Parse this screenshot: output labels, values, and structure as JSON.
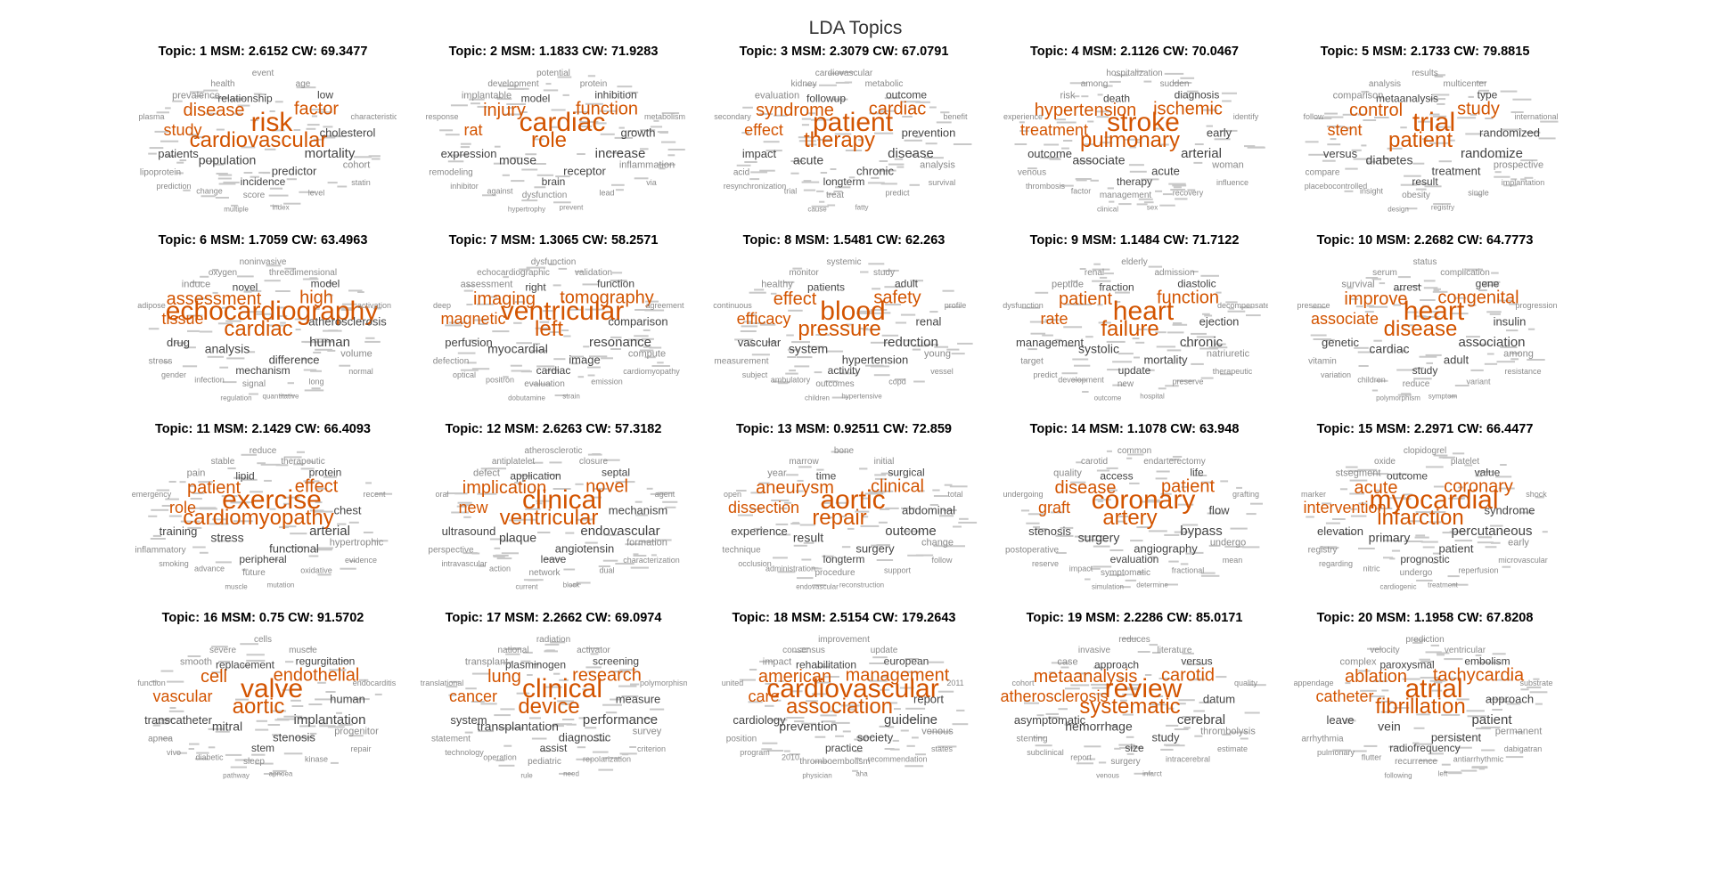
{
  "title": "LDA Topics",
  "colors": {
    "highlight": "#d35400",
    "regular": "#444444",
    "minor": "#8a8a8a"
  },
  "chart_data": [
    {
      "type": "wordcloud",
      "title": "Topic: 1 MSM: 2.6152 CW: 69.3477",
      "highlight": [
        "risk",
        "cardiovascular",
        "disease",
        "factor",
        "study"
      ],
      "words": [
        "risk",
        "cardiovascular",
        "disease",
        "factor",
        "study",
        "mortality",
        "population",
        "predictor",
        "patients",
        "cholesterol",
        "incidence",
        "relationship",
        "low",
        "prevalence",
        "cohort",
        "score",
        "lipoprotein",
        "age",
        "health",
        "event",
        "statin",
        "prediction",
        "level",
        "change",
        "characteristic",
        "plasma",
        "index",
        "multiple"
      ]
    },
    {
      "type": "wordcloud",
      "title": "Topic: 2 MSM: 1.1833 CW: 71.9283",
      "highlight": [
        "cardiac",
        "role",
        "injury",
        "function",
        "rat"
      ],
      "words": [
        "cardiac",
        "role",
        "injury",
        "function",
        "rat",
        "increase",
        "mouse",
        "receptor",
        "expression",
        "growth",
        "brain",
        "model",
        "inhibition",
        "implantable",
        "inflammation",
        "dysfunction",
        "remodeling",
        "protein",
        "development",
        "potential",
        "via",
        "inhibitor",
        "lead",
        "against",
        "metabolism",
        "response",
        "prevent",
        "hypertrophy"
      ]
    },
    {
      "type": "wordcloud",
      "title": "Topic: 3 MSM: 2.3079 CW: 67.0791",
      "highlight": [
        "patient",
        "therapy",
        "syndrome",
        "cardiac",
        "effect"
      ],
      "words": [
        "patient",
        "therapy",
        "syndrome",
        "cardiac",
        "effect",
        "disease",
        "acute",
        "chronic",
        "impact",
        "prevention",
        "longterm",
        "followup",
        "outcome",
        "evaluation",
        "analysis",
        "treat",
        "acid",
        "metabolic",
        "kidney",
        "cardiovascular",
        "survival",
        "resynchronization",
        "predict",
        "trial",
        "benefit",
        "secondary",
        "fatty",
        "cause"
      ]
    },
    {
      "type": "wordcloud",
      "title": "Topic: 4 MSM: 2.1126 CW: 70.0467",
      "highlight": [
        "stroke",
        "pulmonary",
        "hypertension",
        "ischemic",
        "treatment"
      ],
      "words": [
        "stroke",
        "pulmonary",
        "hypertension",
        "ischemic",
        "treatment",
        "arterial",
        "associate",
        "acute",
        "outcome",
        "early",
        "therapy",
        "death",
        "diagnosis",
        "risk",
        "woman",
        "management",
        "venous",
        "sudden",
        "among",
        "hospitalization",
        "influence",
        "thrombosis",
        "recovery",
        "factor",
        "identify",
        "experience",
        "sex",
        "clinical"
      ]
    },
    {
      "type": "wordcloud",
      "title": "Topic: 5 MSM: 2.1733 CW: 79.8815",
      "highlight": [
        "trial",
        "patient",
        "control",
        "study",
        "stent"
      ],
      "words": [
        "trial",
        "patient",
        "control",
        "study",
        "stent",
        "randomize",
        "diabetes",
        "treatment",
        "versus",
        "randomized",
        "result",
        "metaanalysis",
        "type",
        "comparison",
        "prospective",
        "obesity",
        "compare",
        "multicenter",
        "analysis",
        "results",
        "implantation",
        "placebocontrolled",
        "single",
        "insight",
        "international",
        "follow",
        "registry",
        "design"
      ]
    },
    {
      "type": "wordcloud",
      "title": "Topic: 6 MSM: 1.7059 CW: 63.4963",
      "highlight": [
        "echocardiography",
        "cardiac",
        "assessment",
        "high",
        "tissue"
      ],
      "words": [
        "echocardiography",
        "cardiac",
        "assessment",
        "high",
        "tissue",
        "human",
        "analysis",
        "difference",
        "drug",
        "atherosclerosis",
        "mechanism",
        "novel",
        "model",
        "induce",
        "volume",
        "signal",
        "stress",
        "threedimensional",
        "oxygen",
        "noninvasive",
        "normal",
        "gender",
        "long",
        "infection",
        "activation",
        "adipose",
        "quantitative",
        "regulation"
      ]
    },
    {
      "type": "wordcloud",
      "title": "Topic: 7 MSM: 1.3065 CW: 58.2571",
      "highlight": [
        "ventricular",
        "left",
        "imaging",
        "tomography",
        "magnetic"
      ],
      "words": [
        "ventricular",
        "left",
        "imaging",
        "tomography",
        "magnetic",
        "resonance",
        "myocardial",
        "image",
        "perfusion",
        "comparison",
        "cardiac",
        "right",
        "function",
        "assessment",
        "compute",
        "evaluation",
        "defection",
        "validation",
        "echocardiographic",
        "dysfunction",
        "cardiomyopathy",
        "optical",
        "emission",
        "positron",
        "agreement",
        "deep",
        "strain",
        "dobutamine"
      ]
    },
    {
      "type": "wordcloud",
      "title": "Topic: 8 MSM: 1.5481 CW: 62.263",
      "highlight": [
        "blood",
        "pressure",
        "effect",
        "safety",
        "efficacy"
      ],
      "words": [
        "blood",
        "pressure",
        "effect",
        "safety",
        "efficacy",
        "reduction",
        "system",
        "hypertension",
        "vascular",
        "renal",
        "activity",
        "patients",
        "adult",
        "healthy",
        "young",
        "outcomes",
        "measurement",
        "study",
        "monitor",
        "systemic",
        "vessel",
        "subject",
        "copd",
        "ambulatory",
        "profile",
        "continuous",
        "hypertensive",
        "children"
      ]
    },
    {
      "type": "wordcloud",
      "title": "Topic: 9 MSM: 1.1484 CW: 71.7122",
      "highlight": [
        "heart",
        "failure",
        "patient",
        "function",
        "rate"
      ],
      "words": [
        "heart",
        "failure",
        "patient",
        "function",
        "rate",
        "chronic",
        "systolic",
        "mortality",
        "management",
        "ejection",
        "update",
        "fraction",
        "diastolic",
        "peptide",
        "natriuretic",
        "new",
        "target",
        "admission",
        "renal",
        "elderly",
        "therapeutic",
        "predict",
        "preserve",
        "development",
        "decompensated",
        "dysfunction",
        "hospital",
        "outcome"
      ]
    },
    {
      "type": "wordcloud",
      "title": "Topic: 10 MSM: 2.2682 CW: 64.7773",
      "highlight": [
        "heart",
        "disease",
        "improve",
        "congenital",
        "associate"
      ],
      "words": [
        "heart",
        "disease",
        "improve",
        "congenital",
        "associate",
        "association",
        "cardiac",
        "adult",
        "genetic",
        "insulin",
        "study",
        "arrest",
        "gene",
        "survival",
        "among",
        "reduce",
        "vitamin",
        "complication",
        "serum",
        "status",
        "resistance",
        "variation",
        "variant",
        "children",
        "progression",
        "presence",
        "symptom",
        "polymorphism"
      ]
    },
    {
      "type": "wordcloud",
      "title": "Topic: 11 MSM: 2.1429 CW: 66.4093",
      "highlight": [
        "exercise",
        "cardiomyopathy",
        "patient",
        "effect",
        "role"
      ],
      "words": [
        "exercise",
        "cardiomyopathy",
        "patient",
        "effect",
        "role",
        "arterial",
        "stress",
        "functional",
        "training",
        "chest",
        "peripheral",
        "lipid",
        "protein",
        "pain",
        "hypertrophic",
        "future",
        "inflammatory",
        "therapeutic",
        "stable",
        "reduce",
        "evidence",
        "smoking",
        "oxidative",
        "advance",
        "recent",
        "emergency",
        "mutation",
        "muscle"
      ]
    },
    {
      "type": "wordcloud",
      "title": "Topic: 12 MSM: 2.6263 CW: 57.3182",
      "highlight": [
        "clinical",
        "ventricular",
        "implication",
        "novel",
        "new"
      ],
      "words": [
        "clinical",
        "ventricular",
        "implication",
        "novel",
        "new",
        "endovascular",
        "plaque",
        "angiotensin",
        "ultrasound",
        "mechanism",
        "leave",
        "application",
        "septal",
        "defect",
        "formation",
        "network",
        "perspective",
        "closure",
        "antiplatelet",
        "atherosclerotic",
        "characterization",
        "intravascular",
        "dual",
        "action",
        "agent",
        "oral",
        "block",
        "current"
      ]
    },
    {
      "type": "wordcloud",
      "title": "Topic: 13 MSM: 0.92511 CW: 72.859",
      "highlight": [
        "aortic",
        "repair",
        "aneurysm",
        "clinical",
        "dissection"
      ],
      "words": [
        "aortic",
        "repair",
        "aneurysm",
        "clinical",
        "dissection",
        "outcome",
        "result",
        "surgery",
        "experience",
        "abdominal",
        "longterm",
        "time",
        "surgical",
        "year",
        "change",
        "procedure",
        "technique",
        "initial",
        "marrow",
        "bone",
        "follow",
        "occlusion",
        "support",
        "administration",
        "total",
        "open",
        "reconstruction",
        "endovascular"
      ]
    },
    {
      "type": "wordcloud",
      "title": "Topic: 14 MSM: 1.1078 CW: 63.948",
      "highlight": [
        "coronary",
        "artery",
        "disease",
        "patient",
        "graft"
      ],
      "words": [
        "coronary",
        "artery",
        "disease",
        "patient",
        "graft",
        "bypass",
        "surgery",
        "angiography",
        "stenosis",
        "flow",
        "evaluation",
        "access",
        "life",
        "quality",
        "undergo",
        "symptomatic",
        "postoperative",
        "endarterectomy",
        "carotid",
        "common",
        "mean",
        "reserve",
        "fractional",
        "impact",
        "grafting",
        "undergoing",
        "determine",
        "simulation"
      ]
    },
    {
      "type": "wordcloud",
      "title": "Topic: 15 MSM: 2.2971 CW: 66.4477",
      "highlight": [
        "myocardial",
        "infarction",
        "acute",
        "coronary",
        "intervention"
      ],
      "words": [
        "myocardial",
        "infarction",
        "acute",
        "coronary",
        "intervention",
        "percutaneous",
        "primary",
        "patient",
        "elevation",
        "syndrome",
        "prognostic",
        "outcome",
        "value",
        "stsegment",
        "early",
        "undergo",
        "registry",
        "platelet",
        "oxide",
        "clopidogrel",
        "microvascular",
        "regarding",
        "reperfusion",
        "nitric",
        "shock",
        "marker",
        "treatment",
        "cardiogenic"
      ]
    },
    {
      "type": "wordcloud",
      "title": "Topic: 16 MSM: 0.75 CW: 91.5702",
      "highlight": [
        "valve",
        "aortic",
        "cell",
        "endothelial",
        "vascular"
      ],
      "words": [
        "valve",
        "aortic",
        "cell",
        "endothelial",
        "vascular",
        "implantation",
        "mitral",
        "stenosis",
        "transcatheter",
        "human",
        "stem",
        "replacement",
        "regurgitation",
        "smooth",
        "progenitor",
        "sleep",
        "apnea",
        "muscle",
        "severe",
        "cells",
        "repair",
        "vivo",
        "kinase",
        "diabetic",
        "endocarditis",
        "function",
        "apnoea",
        "pathway"
      ]
    },
    {
      "type": "wordcloud",
      "title": "Topic: 17 MSM: 2.2662 CW: 69.0974",
      "highlight": [
        "clinical",
        "device",
        "lung",
        "research",
        "cancer"
      ],
      "words": [
        "clinical",
        "device",
        "lung",
        "research",
        "cancer",
        "performance",
        "transplantation",
        "diagnostic",
        "system",
        "measure",
        "assist",
        "plasminogen",
        "screening",
        "transplant",
        "survey",
        "pediatric",
        "statement",
        "activator",
        "national",
        "radiation",
        "criterion",
        "technology",
        "repolarization",
        "operation",
        "polymorphism",
        "translational",
        "need",
        "rule"
      ]
    },
    {
      "type": "wordcloud",
      "title": "Topic: 18 MSM: 2.5154 CW: 179.2643",
      "highlight": [
        "cardiovascular",
        "association",
        "american",
        "management",
        "care"
      ],
      "words": [
        "cardiovascular",
        "association",
        "american",
        "management",
        "care",
        "guideline",
        "prevention",
        "society",
        "cardiology",
        "report",
        "practice",
        "rehabilitation",
        "european",
        "impact",
        "venous",
        "thromboembolism",
        "position",
        "update",
        "consensus",
        "improvement",
        "states",
        "program",
        "recommendation",
        "2010",
        "2011",
        "united",
        "aha",
        "physician"
      ]
    },
    {
      "type": "wordcloud",
      "title": "Topic: 19 MSM: 2.2286 CW: 85.0171",
      "highlight": [
        "review",
        "systematic",
        "metaanalysis",
        "carotid",
        "atherosclerosis"
      ],
      "words": [
        "review",
        "systematic",
        "metaanalysis",
        "carotid",
        "atherosclerosis",
        "cerebral",
        "hemorrhage",
        "study",
        "asymptomatic",
        "datum",
        "size",
        "approach",
        "versus",
        "case",
        "thrombolysis",
        "surgery",
        "stenting",
        "literature",
        "invasive",
        "reduces",
        "estimate",
        "subclinical",
        "intracerebral",
        "report",
        "quality",
        "cohort",
        "infarct",
        "venous"
      ]
    },
    {
      "type": "wordcloud",
      "title": "Topic: 20 MSM: 1.1958 CW: 67.8208",
      "highlight": [
        "atrial",
        "fibrillation",
        "ablation",
        "tachycardia",
        "catheter"
      ],
      "words": [
        "atrial",
        "fibrillation",
        "ablation",
        "tachycardia",
        "catheter",
        "patient",
        "vein",
        "persistent",
        "leave",
        "approach",
        "radiofrequency",
        "paroxysmal",
        "embolism",
        "complex",
        "permanent",
        "recurrence",
        "arrhythmia",
        "ventricular",
        "velocity",
        "prediction",
        "dabigatran",
        "pulmonary",
        "antiarrhythmic",
        "flutter",
        "substrate",
        "appendage",
        "left",
        "following"
      ]
    }
  ]
}
